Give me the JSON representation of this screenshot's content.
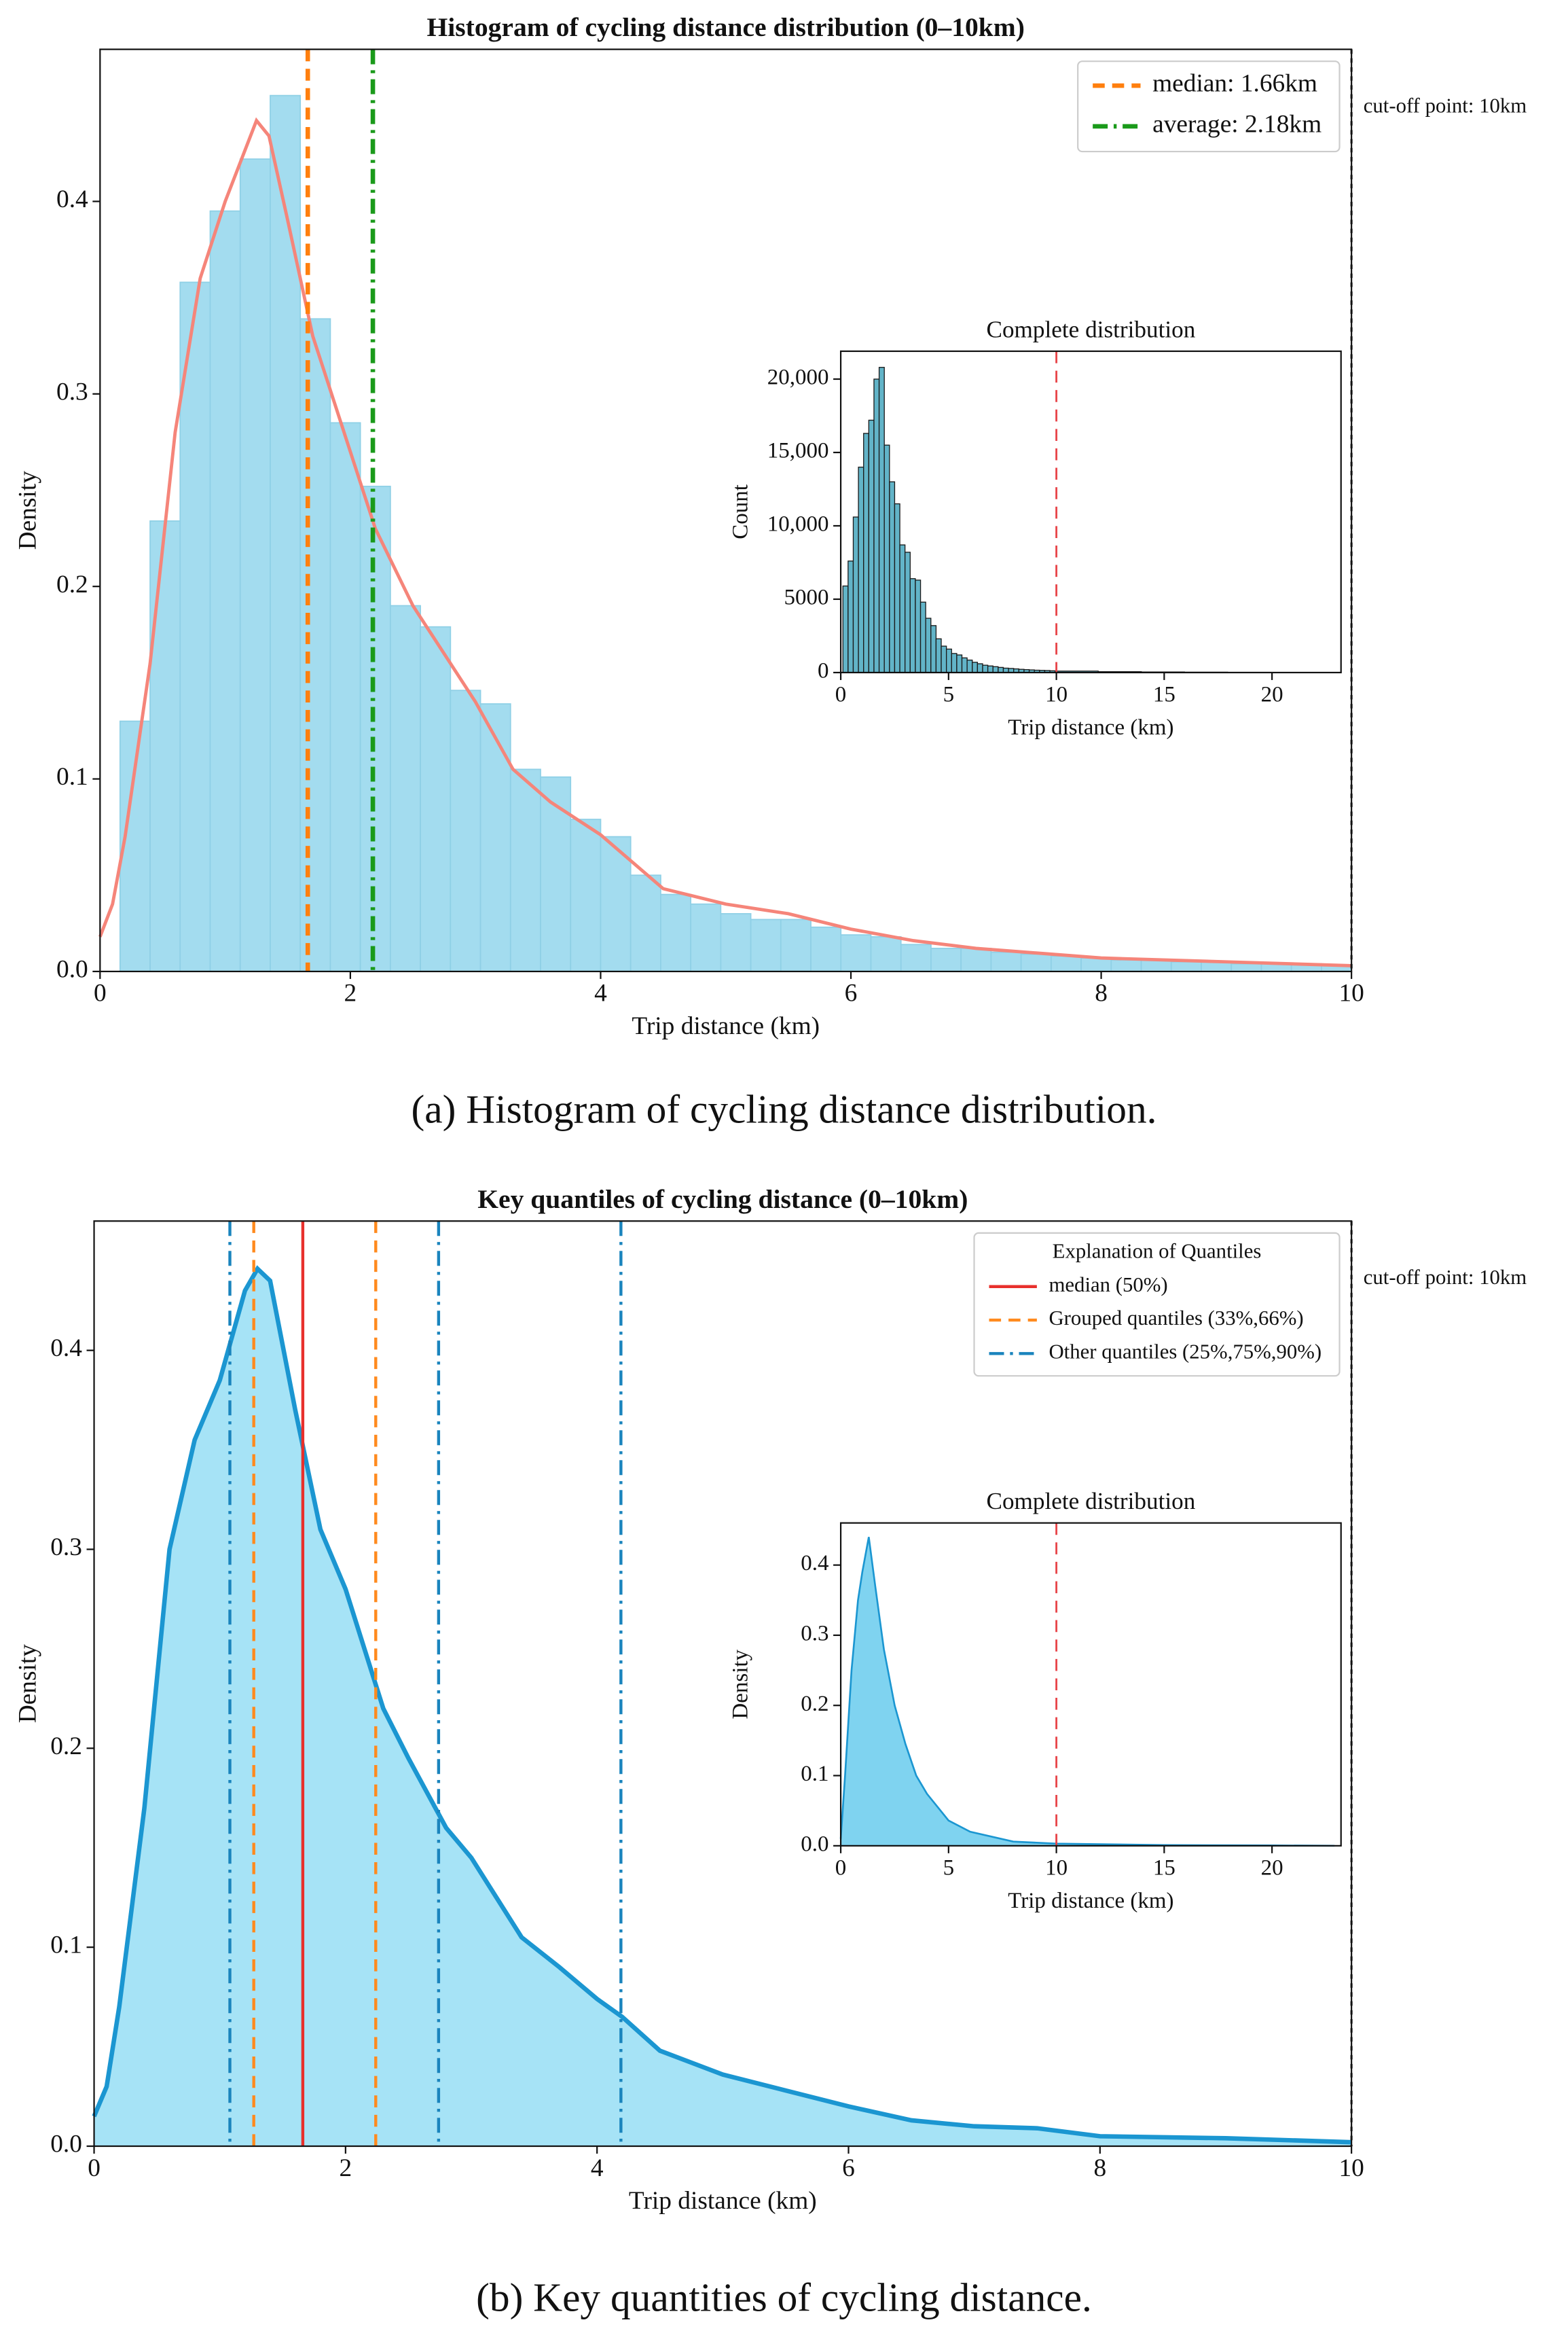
{
  "chart_data": [
    {
      "type": "histogram",
      "title": "Histogram of cycling distance distribution (0–10km)",
      "caption": "(a) Histogram of cycling distance distribution.",
      "xlabel": "Trip distance (km)",
      "ylabel": "Density",
      "bins": [
        0.16,
        0.4,
        0.64,
        0.88,
        1.12,
        1.36,
        1.6,
        1.84,
        2.08,
        2.32,
        2.56,
        2.8,
        3.04,
        3.28,
        3.52,
        3.76,
        4.0,
        4.24,
        4.48,
        4.72,
        4.96,
        5.2,
        5.44,
        5.68,
        5.92,
        6.16,
        6.4,
        6.64,
        6.88,
        7.12,
        7.36,
        7.6,
        7.84,
        8.08,
        8.32,
        8.56,
        8.8,
        9.04,
        9.28,
        9.52,
        9.76,
        10.0
      ],
      "counts": [
        0.13,
        0.234,
        0.358,
        0.395,
        0.422,
        0.455,
        0.339,
        0.285,
        0.252,
        0.19,
        0.179,
        0.146,
        0.139,
        0.105,
        0.101,
        0.079,
        0.07,
        0.05,
        0.04,
        0.035,
        0.03,
        0.027,
        0.027,
        0.023,
        0.019,
        0.018,
        0.014,
        0.012,
        0.012,
        0.01,
        0.009,
        0.008,
        0.007,
        0.006,
        0.006,
        0.005,
        0.005,
        0.004,
        0.004,
        0.004,
        0.003
      ],
      "color": "#a3dcef",
      "edgecolor": "#8fd0e6",
      "line": {
        "color": "#f5857a",
        "x": [
          0,
          0.1,
          0.2,
          0.4,
          0.6,
          0.8,
          1.0,
          1.25,
          1.35,
          1.5,
          1.7,
          2.0,
          2.2,
          2.5,
          3.0,
          3.3,
          3.6,
          4.0,
          4.5,
          5,
          5.5,
          6,
          6.5,
          7,
          8,
          9,
          10
        ],
        "y": [
          0.018,
          0.035,
          0.07,
          0.16,
          0.28,
          0.36,
          0.4,
          0.442,
          0.434,
          0.39,
          0.33,
          0.27,
          0.23,
          0.19,
          0.14,
          0.105,
          0.088,
          0.071,
          0.043,
          0.035,
          0.03,
          0.022,
          0.016,
          0.012,
          0.007,
          0.005,
          0.003
        ]
      },
      "vlines": [
        {
          "name": "median: 1.66km",
          "x": 1.66,
          "color": "#ff7f0e",
          "style": "dashed"
        },
        {
          "name": "average: 2.18km",
          "x": 2.18,
          "color": "#1a9a1a",
          "style": "dashdot"
        }
      ],
      "cutoff": {
        "x": 10,
        "label": "cut-off point: 10km"
      },
      "legend": "upper right",
      "xlim": [
        0,
        10
      ],
      "xticks": [
        0,
        2,
        4,
        6,
        8,
        10
      ],
      "ylim": [
        0,
        0.479
      ],
      "yticks": [
        {
          "value": 0,
          "label": "0.0"
        },
        0.1,
        0.2,
        0.3,
        0.4
      ]
    },
    {
      "type": "histogram",
      "title": "Complete distribution",
      "xlabel": "Trip distance (km)",
      "ylabel": "Count",
      "bins": [
        0.1,
        0.34,
        0.58,
        0.82,
        1.06,
        1.3,
        1.54,
        1.78,
        2.02,
        2.26,
        2.5,
        2.74,
        2.98,
        3.22,
        3.46,
        3.7,
        3.94,
        4.18,
        4.42,
        4.66,
        4.9,
        5.14,
        5.38,
        5.62,
        5.86,
        6.1,
        6.34,
        6.58,
        6.82,
        7.06,
        7.3,
        7.54,
        7.78,
        8.02,
        8.26,
        8.5,
        8.74,
        8.98,
        9.22,
        9.46,
        9.7,
        9.94,
        11.94,
        13.94,
        15.94,
        17.94,
        19.94,
        21.94,
        22.94
      ],
      "counts": [
        5900,
        7600,
        10600,
        14000,
        16300,
        17200,
        20000,
        20800,
        15500,
        13000,
        11500,
        8700,
        8200,
        6400,
        6300,
        4800,
        3700,
        3200,
        2300,
        1800,
        1600,
        1300,
        1200,
        1000,
        850,
        700,
        600,
        500,
        450,
        400,
        350,
        300,
        280,
        250,
        220,
        200,
        180,
        160,
        150,
        140,
        120,
        100,
        60,
        40,
        25,
        15,
        10,
        5
      ],
      "color": "#62b4c8",
      "edgecolor": "#1a1a1a",
      "vlines": [
        {
          "x": 10,
          "color": "#e8464a",
          "style": "dashed"
        }
      ],
      "xlim": [
        0,
        23.2
      ],
      "xticks": [
        0,
        5,
        10,
        15,
        20
      ],
      "ylim": [
        0,
        21900
      ],
      "yticks": [
        0,
        5000,
        {
          "value": 10000,
          "label": "10,000"
        },
        {
          "value": 15000,
          "label": "15,000"
        },
        {
          "value": 20000,
          "label": "20,000"
        }
      ]
    },
    {
      "type": "area",
      "title": "Key quantiles of cycling distance (0–10km)",
      "caption": "(b) Key quantities of cycling distance.",
      "xlabel": "Trip distance (km)",
      "ylabel": "Density",
      "x": [
        0,
        0.1,
        0.2,
        0.4,
        0.6,
        0.8,
        1.0,
        1.2,
        1.3,
        1.4,
        1.6,
        1.8,
        2.0,
        2.3,
        2.5,
        2.8,
        3.0,
        3.2,
        3.4,
        3.7,
        4.0,
        4.2,
        4.5,
        5,
        5.5,
        6,
        6.5,
        7,
        7.5,
        8,
        9,
        10
      ],
      "values": [
        0.015,
        0.03,
        0.07,
        0.17,
        0.3,
        0.355,
        0.385,
        0.43,
        0.441,
        0.435,
        0.37,
        0.31,
        0.28,
        0.22,
        0.195,
        0.16,
        0.145,
        0.125,
        0.105,
        0.09,
        0.074,
        0.065,
        0.048,
        0.036,
        0.028,
        0.02,
        0.013,
        0.01,
        0.009,
        0.005,
        0.004,
        0.002
      ],
      "color": "#a6e3f6",
      "linecolor": "#1b96d1",
      "legend_title": "Explanation of Quantiles",
      "vlines": [
        {
          "name": "median (50%)",
          "x": 1.66,
          "color": "#e8302c",
          "style": "solid"
        },
        {
          "name": "Grouped quantiles (33%,66%)",
          "x": 1.27,
          "color": "#ff8a1e",
          "style": "dashed"
        },
        {
          "x": 2.24,
          "color": "#ff8a1e",
          "style": "dashed"
        },
        {
          "name": "Other quantiles (25%,75%,90%)",
          "x": 1.08,
          "color": "#1a84bd",
          "style": "dashdot"
        },
        {
          "x": 2.74,
          "color": "#1a84bd",
          "style": "dashdot"
        },
        {
          "x": 4.19,
          "color": "#1a84bd",
          "style": "dashdot"
        }
      ],
      "cutoff": {
        "x": 10,
        "label": "cut-off point: 10km"
      },
      "legend": "upper right",
      "xlim": [
        0,
        10
      ],
      "xticks": [
        0,
        2,
        4,
        6,
        8,
        10
      ],
      "ylim": [
        0,
        0.465
      ],
      "yticks": [
        {
          "value": 0,
          "label": "0.0"
        },
        0.1,
        0.2,
        0.3,
        0.4
      ]
    },
    {
      "type": "area",
      "title": "Complete distribution",
      "xlabel": "Trip distance (km)",
      "ylabel": "Density",
      "x": [
        0,
        0.2,
        0.5,
        0.8,
        1.0,
        1.3,
        1.6,
        2.0,
        2.5,
        3.0,
        3.5,
        4.0,
        5.0,
        6.0,
        8.0,
        10.0,
        15.0,
        20.0,
        22.9
      ],
      "values": [
        0.01,
        0.1,
        0.25,
        0.35,
        0.39,
        0.44,
        0.37,
        0.28,
        0.2,
        0.145,
        0.1,
        0.074,
        0.036,
        0.02,
        0.006,
        0.003,
        0.001,
        0.0005,
        0
      ],
      "color": "#7fd3f0",
      "linecolor": "#1b96d1",
      "vlines": [
        {
          "x": 10,
          "color": "#e8464a",
          "style": "dashed"
        }
      ],
      "xlim": [
        0,
        23.2
      ],
      "xticks": [
        0,
        5,
        10,
        15,
        20
      ],
      "ylim": [
        0,
        0.46
      ],
      "yticks": [
        {
          "value": 0,
          "label": "0.0"
        },
        0.1,
        0.2,
        0.3,
        0.4
      ]
    }
  ]
}
